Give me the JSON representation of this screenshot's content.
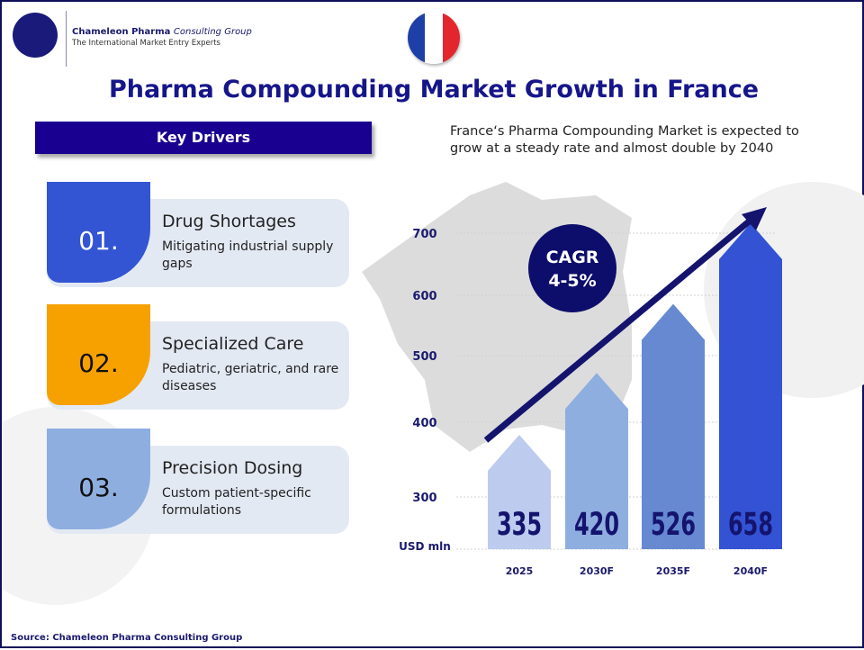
{
  "header": {
    "company_name": "Chameleon Pharma",
    "company_suffix": "Consulting Group",
    "tagline": "The International Market Entry Experts",
    "flag": "france-flag"
  },
  "title": "Pharma Compounding Market Growth in France",
  "key_drivers": {
    "heading": "Key Drivers",
    "items": [
      {
        "number": "01.",
        "title": "Drug Shortages",
        "description": "Mitigating industrial supply gaps",
        "color": "#3355d4",
        "number_color": "#ffffff"
      },
      {
        "number": "02.",
        "title": "Specialized Care",
        "description": "Pediatric, geriatric, and rare diseases",
        "color": "#f7a100",
        "number_color": "#111111"
      },
      {
        "number": "03.",
        "title": "Precision Dosing",
        "description": "Custom patient-specific formulations",
        "color": "#8eaee0",
        "number_color": "#111111"
      }
    ]
  },
  "subtitle": "France‘s Pharma Compounding Market is expected to grow at a steady rate and almost double by 2040",
  "cagr": {
    "label": "CAGR",
    "value": "4-5%"
  },
  "chart_data": {
    "type": "bar",
    "categories": [
      "2025",
      "2030F",
      "2035F",
      "2040F"
    ],
    "values": [
      335,
      420,
      526,
      658
    ],
    "data_labels": [
      "335",
      "420",
      "526",
      "658"
    ],
    "ylabel": "USD mln",
    "yticks": [
      300,
      400,
      500,
      600,
      700
    ],
    "grid": true,
    "colors": [
      "#bccbee",
      "#8eaee0",
      "#6689d2",
      "#3353d4"
    ]
  },
  "source": "Source: Chameleon Pharma Consulting Group"
}
